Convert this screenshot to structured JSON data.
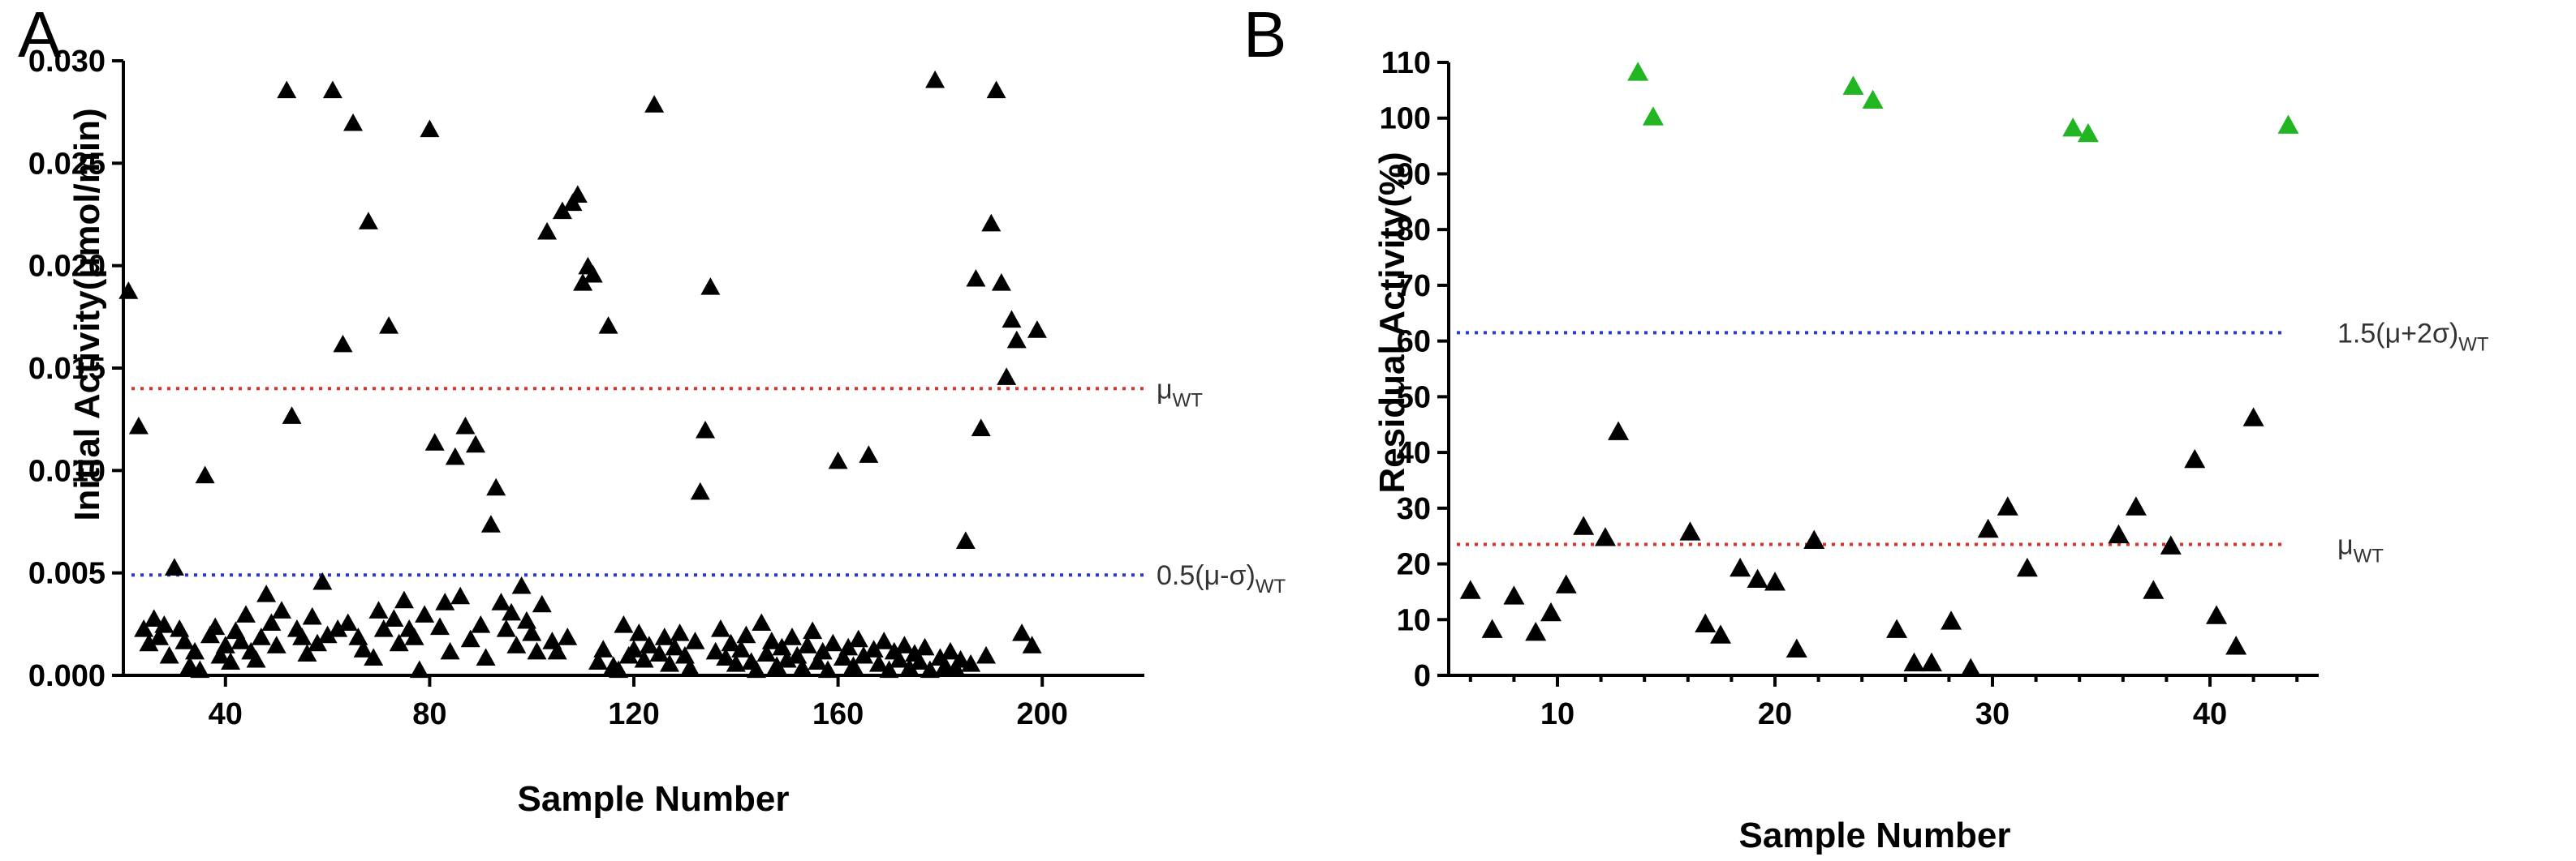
{
  "chart_data": [
    {
      "type": "scatter",
      "panel": "A",
      "title": "",
      "xlabel": "Sample Number",
      "ylabel": "Initial Activity(μmol/min)",
      "xlim": [
        20,
        220
      ],
      "ylim": [
        0,
        0.03
      ],
      "x_ticks": [
        40,
        80,
        120,
        160,
        200
      ],
      "y_ticks": [
        0.0,
        0.005,
        0.01,
        0.015,
        0.02,
        0.025,
        0.03
      ],
      "y_tick_labels": [
        "0.000",
        "0.005",
        "0.010",
        "0.015",
        "0.020",
        "0.025",
        "0.030"
      ],
      "reference_lines": [
        {
          "name": "mu_wt",
          "label_main": "μ",
          "label_sub": "WT",
          "value": 0.014,
          "color": "#e0302a"
        },
        {
          "name": "threshold",
          "label_main": "0.5(μ-σ)",
          "label_sub": "WT",
          "value": 0.0049,
          "color": "#2a36e0"
        }
      ],
      "marker_color": "#000000",
      "points": [
        [
          21,
          0.0187
        ],
        [
          23,
          0.0121
        ],
        [
          24,
          0.0022
        ],
        [
          25,
          0.0015
        ],
        [
          26,
          0.0027
        ],
        [
          27,
          0.0018
        ],
        [
          28,
          0.0024
        ],
        [
          29,
          0.0009
        ],
        [
          30,
          0.0052
        ],
        [
          31,
          0.0022
        ],
        [
          32,
          0.0016
        ],
        [
          33,
          0.0004
        ],
        [
          34,
          0.0011
        ],
        [
          35,
          0.0002
        ],
        [
          36,
          0.0097
        ],
        [
          37,
          0.0019
        ],
        [
          38,
          0.0023
        ],
        [
          39,
          0.0009
        ],
        [
          40,
          0.0014
        ],
        [
          41,
          0.0006
        ],
        [
          42,
          0.0021
        ],
        [
          43,
          0.0016
        ],
        [
          44,
          0.0029
        ],
        [
          45,
          0.0011
        ],
        [
          46,
          0.0007
        ],
        [
          47,
          0.0018
        ],
        [
          48,
          0.0039
        ],
        [
          49,
          0.0025
        ],
        [
          50,
          0.0014
        ],
        [
          51,
          0.0031
        ],
        [
          52,
          0.0285
        ],
        [
          53,
          0.0126
        ],
        [
          54,
          0.0022
        ],
        [
          55,
          0.0018
        ],
        [
          56,
          0.001
        ],
        [
          57,
          0.0028
        ],
        [
          58,
          0.0015
        ],
        [
          59,
          0.0045
        ],
        [
          60,
          0.0019
        ],
        [
          61,
          0.0285
        ],
        [
          62,
          0.0022
        ],
        [
          63,
          0.0161
        ],
        [
          64,
          0.0025
        ],
        [
          65,
          0.0269
        ],
        [
          66,
          0.0018
        ],
        [
          67,
          0.0012
        ],
        [
          68,
          0.0221
        ],
        [
          69,
          0.0008
        ],
        [
          70,
          0.0031
        ],
        [
          71,
          0.0022
        ],
        [
          72,
          0.017
        ],
        [
          73,
          0.0027
        ],
        [
          74,
          0.0015
        ],
        [
          75,
          0.0036
        ],
        [
          76,
          0.0022
        ],
        [
          77,
          0.0018
        ],
        [
          78,
          0.0002
        ],
        [
          79,
          0.0029
        ],
        [
          80,
          0.0266
        ],
        [
          81,
          0.0113
        ],
        [
          82,
          0.0023
        ],
        [
          83,
          0.0035
        ],
        [
          84,
          0.0011
        ],
        [
          85,
          0.0106
        ],
        [
          86,
          0.0038
        ],
        [
          87,
          0.0121
        ],
        [
          88,
          0.0017
        ],
        [
          89,
          0.0112
        ],
        [
          90,
          0.0024
        ],
        [
          91,
          0.0008
        ],
        [
          92,
          0.0073
        ],
        [
          93,
          0.0091
        ],
        [
          94,
          0.0035
        ],
        [
          95,
          0.0022
        ],
        [
          96,
          0.003
        ],
        [
          97,
          0.0014
        ],
        [
          98,
          0.0043
        ],
        [
          99,
          0.0026
        ],
        [
          100,
          0.002
        ],
        [
          101,
          0.0011
        ],
        [
          102,
          0.0034
        ],
        [
          103,
          0.0216
        ],
        [
          104,
          0.0016
        ],
        [
          105,
          0.0011
        ],
        [
          106,
          0.0226
        ],
        [
          107,
          0.0018
        ],
        [
          108,
          0.023
        ],
        [
          109,
          0.0234
        ],
        [
          110,
          0.0191
        ],
        [
          111,
          0.0199
        ],
        [
          112,
          0.0195
        ],
        [
          113,
          0.0006
        ],
        [
          114,
          0.0012
        ],
        [
          115,
          0.017
        ],
        [
          116,
          0.0004
        ],
        [
          117,
          0.0002
        ],
        [
          118,
          0.0024
        ],
        [
          119,
          0.0009
        ],
        [
          120,
          0.0012
        ],
        [
          121,
          0.002
        ],
        [
          122,
          0.0007
        ],
        [
          123,
          0.0014
        ],
        [
          124,
          0.0278
        ],
        [
          125,
          0.001
        ],
        [
          126,
          0.0018
        ],
        [
          127,
          0.0005
        ],
        [
          128,
          0.0013
        ],
        [
          129,
          0.002
        ],
        [
          130,
          0.0009
        ],
        [
          131,
          0.0003
        ],
        [
          132,
          0.0016
        ],
        [
          133,
          0.0089
        ],
        [
          134,
          0.0119
        ],
        [
          135,
          0.0189
        ],
        [
          136,
          0.0011
        ],
        [
          137,
          0.0022
        ],
        [
          138,
          0.0008
        ],
        [
          139,
          0.0015
        ],
        [
          140,
          0.0005
        ],
        [
          141,
          0.0012
        ],
        [
          142,
          0.0019
        ],
        [
          143,
          0.0006
        ],
        [
          144,
          0.0002
        ],
        [
          145,
          0.0025
        ],
        [
          146,
          0.001
        ],
        [
          147,
          0.0016
        ],
        [
          148,
          0.0004
        ],
        [
          149,
          0.0013
        ],
        [
          150,
          0.0007
        ],
        [
          151,
          0.0018
        ],
        [
          152,
          0.0009
        ],
        [
          153,
          0.0003
        ],
        [
          154,
          0.0014
        ],
        [
          155,
          0.0021
        ],
        [
          156,
          0.0006
        ],
        [
          157,
          0.0011
        ],
        [
          158,
          0.0002
        ],
        [
          159,
          0.0015
        ],
        [
          160,
          0.0104
        ],
        [
          161,
          0.0008
        ],
        [
          162,
          0.0013
        ],
        [
          163,
          0.0004
        ],
        [
          164,
          0.0017
        ],
        [
          165,
          0.0009
        ],
        [
          166,
          0.0107
        ],
        [
          167,
          0.0012
        ],
        [
          168,
          0.0005
        ],
        [
          169,
          0.0016
        ],
        [
          170,
          0.0002
        ],
        [
          171,
          0.0011
        ],
        [
          172,
          0.0007
        ],
        [
          173,
          0.0014
        ],
        [
          174,
          0.0003
        ],
        [
          175,
          0.001
        ],
        [
          176,
          0.0006
        ],
        [
          177,
          0.0013
        ],
        [
          178,
          0.0002
        ],
        [
          179,
          0.029
        ],
        [
          180,
          0.0008
        ],
        [
          181,
          0.0004
        ],
        [
          182,
          0.0011
        ],
        [
          183,
          0.0003
        ],
        [
          184,
          0.0007
        ],
        [
          185,
          0.0065
        ],
        [
          186,
          0.0005
        ],
        [
          187,
          0.0193
        ],
        [
          188,
          0.012
        ],
        [
          189,
          0.0009
        ],
        [
          190,
          0.022
        ],
        [
          191,
          0.0285
        ],
        [
          192,
          0.0191
        ],
        [
          193,
          0.0145
        ],
        [
          194,
          0.0173
        ],
        [
          195,
          0.0163
        ],
        [
          196,
          0.002
        ],
        [
          198,
          0.0014
        ],
        [
          199,
          0.0168
        ]
      ]
    },
    {
      "type": "scatter",
      "panel": "B",
      "title": "",
      "xlabel": "Sample Number",
      "ylabel": "Residual Activity(%)",
      "xlim": [
        5,
        45
      ],
      "ylim": [
        0,
        110
      ],
      "x_ticks": [
        10,
        20,
        30,
        40
      ],
      "y_ticks": [
        0,
        10,
        20,
        30,
        40,
        50,
        60,
        70,
        80,
        90,
        100,
        110
      ],
      "reference_lines": [
        {
          "name": "threshold",
          "label_main": "1.5(μ+2σ)",
          "label_sub": "WT",
          "value": 61.5,
          "color": "#2a36e0"
        },
        {
          "name": "mu_wt",
          "label_main": "μ",
          "label_sub": "WT",
          "value": 23.5,
          "color": "#e0302a"
        }
      ],
      "series": [
        {
          "name": "below-threshold",
          "color": "#000000",
          "points": [
            [
              6,
              15
            ],
            [
              7,
              8
            ],
            [
              8,
              14
            ],
            [
              9,
              7.5
            ],
            [
              9.7,
              11
            ],
            [
              10.4,
              16
            ],
            [
              11.2,
              26.5
            ],
            [
              12.2,
              24.5
            ],
            [
              12.8,
              43.5
            ],
            [
              16.1,
              25.5
            ],
            [
              16.8,
              9
            ],
            [
              17.5,
              7
            ],
            [
              18.4,
              19
            ],
            [
              19.2,
              17
            ],
            [
              20,
              16.5
            ],
            [
              21,
              4.5
            ],
            [
              21.8,
              24
            ],
            [
              25.6,
              8
            ],
            [
              26.4,
              2
            ],
            [
              27.2,
              2
            ],
            [
              28.1,
              9.5
            ],
            [
              29,
              1
            ],
            [
              29.8,
              26
            ],
            [
              30.7,
              30
            ],
            [
              31.6,
              19
            ],
            [
              35.8,
              25
            ],
            [
              36.6,
              30
            ],
            [
              37.4,
              15
            ],
            [
              38.2,
              23
            ],
            [
              39.3,
              38.5
            ],
            [
              40.3,
              10.5
            ],
            [
              41.2,
              5
            ],
            [
              42,
              46
            ]
          ]
        },
        {
          "name": "above-threshold",
          "color": "#22b522",
          "points": [
            [
              13.7,
              108
            ],
            [
              14.4,
              100
            ],
            [
              23.6,
              105.5
            ],
            [
              24.5,
              103
            ],
            [
              33.7,
              98
            ],
            [
              34.4,
              97
            ],
            [
              43.6,
              98.5
            ]
          ]
        }
      ]
    }
  ]
}
